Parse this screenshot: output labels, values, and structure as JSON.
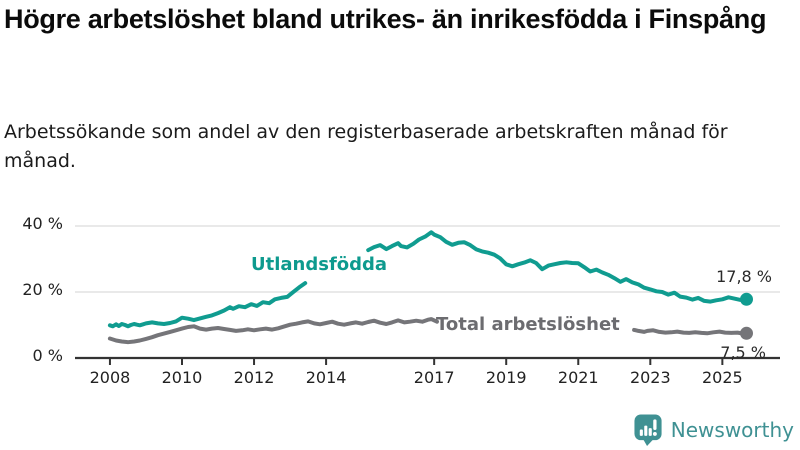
{
  "header": {
    "title": "Högre arbetslöshet bland utrikes- än inrikesfödda i Finspång",
    "subtitle": "Arbetssökande som andel av den registerbaserade arbetskraften månad för månad."
  },
  "chart_data": {
    "type": "line",
    "title": "Högre arbetslöshet bland utrikes- än inrikesfödda i Finspång",
    "xlabel": "",
    "ylabel": "",
    "xlim": [
      2007.03,
      2026.6
    ],
    "ylim": [
      0,
      40
    ],
    "grid": "horizontal-only",
    "grid_color": "#dcdcdc",
    "axis_color": "#333333",
    "legend_position": "inline-labels",
    "x_ticks": [
      {
        "year": 2008,
        "label": "2008"
      },
      {
        "year": 2010,
        "label": "2010"
      },
      {
        "year": 2012,
        "label": "2012"
      },
      {
        "year": 2014,
        "label": "2014"
      },
      {
        "year": 2017,
        "label": "2017"
      },
      {
        "year": 2019,
        "label": "2019"
      },
      {
        "year": 2021,
        "label": "2021"
      },
      {
        "year": 2023,
        "label": "2023"
      },
      {
        "year": 2025,
        "label": "2025"
      }
    ],
    "y_ticks": [
      {
        "value": 0,
        "label": "0 %"
      },
      {
        "value": 20,
        "label": "20 %"
      },
      {
        "value": 40,
        "label": "40 %"
      }
    ],
    "series": [
      {
        "name": "Utlandsfödda",
        "color": "#109c90",
        "label_color": "#0d9a8e",
        "end_label": "17,8 %",
        "end_value": 17.8,
        "segments": [
          [
            [
              2008.0,
              9.9
            ],
            [
              2008.08,
              9.6
            ],
            [
              2008.17,
              10.2
            ],
            [
              2008.25,
              9.7
            ],
            [
              2008.33,
              10.3
            ],
            [
              2008.42,
              10.0
            ],
            [
              2008.5,
              9.6
            ],
            [
              2008.58,
              10.0
            ],
            [
              2008.67,
              10.3
            ],
            [
              2008.75,
              10.1
            ],
            [
              2008.83,
              9.9
            ],
            [
              2008.92,
              10.2
            ],
            [
              2009.0,
              10.5
            ],
            [
              2009.17,
              10.8
            ],
            [
              2009.33,
              10.5
            ],
            [
              2009.5,
              10.3
            ],
            [
              2009.67,
              10.6
            ],
            [
              2009.83,
              11.1
            ],
            [
              2010.0,
              12.2
            ],
            [
              2010.17,
              11.9
            ],
            [
              2010.33,
              11.5
            ],
            [
              2010.5,
              12.0
            ],
            [
              2010.67,
              12.5
            ],
            [
              2010.83,
              12.9
            ],
            [
              2011.0,
              13.6
            ],
            [
              2011.17,
              14.4
            ],
            [
              2011.33,
              15.4
            ],
            [
              2011.42,
              14.9
            ],
            [
              2011.58,
              15.7
            ],
            [
              2011.75,
              15.4
            ],
            [
              2011.92,
              16.3
            ],
            [
              2012.08,
              15.8
            ],
            [
              2012.25,
              16.9
            ],
            [
              2012.42,
              16.6
            ],
            [
              2012.58,
              17.8
            ],
            [
              2012.75,
              18.2
            ],
            [
              2012.92,
              18.5
            ],
            [
              2013.08,
              19.9
            ],
            [
              2013.25,
              21.4
            ],
            [
              2013.42,
              22.7
            ]
          ],
          [
            [
              2015.17,
              32.7
            ],
            [
              2015.33,
              33.6
            ],
            [
              2015.5,
              34.2
            ],
            [
              2015.67,
              33.0
            ],
            [
              2015.83,
              33.9
            ],
            [
              2016.0,
              34.8
            ],
            [
              2016.08,
              33.9
            ],
            [
              2016.25,
              33.5
            ],
            [
              2016.42,
              34.6
            ],
            [
              2016.58,
              35.9
            ],
            [
              2016.75,
              36.8
            ],
            [
              2016.92,
              38.1
            ],
            [
              2017.0,
              37.4
            ],
            [
              2017.17,
              36.6
            ],
            [
              2017.33,
              35.2
            ],
            [
              2017.5,
              34.3
            ],
            [
              2017.67,
              34.9
            ],
            [
              2017.83,
              35.1
            ],
            [
              2018.0,
              34.2
            ],
            [
              2018.17,
              32.9
            ],
            [
              2018.33,
              32.3
            ],
            [
              2018.5,
              31.9
            ],
            [
              2018.67,
              31.3
            ],
            [
              2018.83,
              30.2
            ],
            [
              2019.0,
              28.4
            ],
            [
              2019.17,
              27.8
            ],
            [
              2019.33,
              28.4
            ],
            [
              2019.5,
              28.9
            ],
            [
              2019.67,
              29.6
            ],
            [
              2019.83,
              28.8
            ],
            [
              2020.0,
              26.9
            ],
            [
              2020.17,
              28.0
            ],
            [
              2020.33,
              28.4
            ],
            [
              2020.5,
              28.8
            ],
            [
              2020.67,
              29.0
            ],
            [
              2020.83,
              28.8
            ],
            [
              2021.0,
              28.7
            ],
            [
              2021.17,
              27.5
            ],
            [
              2021.33,
              26.2
            ],
            [
              2021.5,
              26.8
            ],
            [
              2021.67,
              25.9
            ],
            [
              2021.83,
              25.2
            ],
            [
              2022.0,
              24.2
            ],
            [
              2022.17,
              23.1
            ],
            [
              2022.33,
              23.9
            ],
            [
              2022.5,
              22.9
            ],
            [
              2022.67,
              22.3
            ],
            [
              2022.83,
              21.3
            ],
            [
              2023.0,
              20.8
            ],
            [
              2023.17,
              20.2
            ],
            [
              2023.33,
              20.0
            ],
            [
              2023.5,
              19.2
            ],
            [
              2023.67,
              19.8
            ],
            [
              2023.83,
              18.6
            ],
            [
              2024.0,
              18.3
            ],
            [
              2024.17,
              17.7
            ],
            [
              2024.33,
              18.2
            ],
            [
              2024.5,
              17.3
            ],
            [
              2024.67,
              17.1
            ],
            [
              2024.83,
              17.5
            ],
            [
              2025.0,
              17.8
            ],
            [
              2025.17,
              18.4
            ],
            [
              2025.33,
              18.0
            ],
            [
              2025.5,
              17.6
            ],
            [
              2025.67,
              17.8
            ]
          ]
        ]
      },
      {
        "name": "Total arbetslöshet",
        "color": "#757579",
        "label_color": "#6c6c70",
        "end_label": "7,5 %",
        "end_value": 7.5,
        "segments": [
          [
            [
              2008.0,
              5.9
            ],
            [
              2008.17,
              5.3
            ],
            [
              2008.33,
              5.0
            ],
            [
              2008.5,
              4.8
            ],
            [
              2008.67,
              5.0
            ],
            [
              2008.83,
              5.3
            ],
            [
              2009.0,
              5.8
            ],
            [
              2009.17,
              6.3
            ],
            [
              2009.33,
              6.9
            ],
            [
              2009.5,
              7.4
            ],
            [
              2009.67,
              7.9
            ],
            [
              2009.83,
              8.4
            ],
            [
              2010.0,
              8.9
            ],
            [
              2010.17,
              9.4
            ],
            [
              2010.33,
              9.6
            ],
            [
              2010.5,
              8.9
            ],
            [
              2010.67,
              8.6
            ],
            [
              2010.83,
              8.9
            ],
            [
              2011.0,
              9.1
            ],
            [
              2011.17,
              8.8
            ],
            [
              2011.33,
              8.5
            ],
            [
              2011.5,
              8.2
            ],
            [
              2011.67,
              8.4
            ],
            [
              2011.83,
              8.7
            ],
            [
              2012.0,
              8.4
            ],
            [
              2012.17,
              8.7
            ],
            [
              2012.33,
              8.9
            ],
            [
              2012.5,
              8.6
            ],
            [
              2012.67,
              9.0
            ],
            [
              2012.83,
              9.5
            ],
            [
              2013.0,
              10.1
            ],
            [
              2013.17,
              10.4
            ],
            [
              2013.33,
              10.8
            ],
            [
              2013.5,
              11.1
            ],
            [
              2013.67,
              10.5
            ],
            [
              2013.83,
              10.2
            ],
            [
              2014.0,
              10.6
            ],
            [
              2014.17,
              11.0
            ],
            [
              2014.33,
              10.4
            ],
            [
              2014.5,
              10.1
            ],
            [
              2014.67,
              10.5
            ],
            [
              2014.83,
              10.8
            ],
            [
              2015.0,
              10.4
            ],
            [
              2015.17,
              10.9
            ],
            [
              2015.33,
              11.3
            ],
            [
              2015.5,
              10.7
            ],
            [
              2015.67,
              10.3
            ],
            [
              2015.83,
              10.8
            ],
            [
              2016.0,
              11.4
            ],
            [
              2016.17,
              10.8
            ],
            [
              2016.33,
              11.0
            ],
            [
              2016.5,
              11.3
            ],
            [
              2016.67,
              11.0
            ],
            [
              2016.83,
              11.6
            ],
            [
              2016.92,
              11.8
            ],
            [
              2017.08,
              11.0
            ]
          ],
          [
            [
              2022.55,
              8.5
            ],
            [
              2022.67,
              8.2
            ],
            [
              2022.83,
              7.9
            ],
            [
              2022.92,
              8.2
            ],
            [
              2023.08,
              8.4
            ],
            [
              2023.25,
              7.9
            ],
            [
              2023.42,
              7.7
            ],
            [
              2023.58,
              7.8
            ],
            [
              2023.75,
              8.0
            ],
            [
              2023.92,
              7.7
            ],
            [
              2024.08,
              7.6
            ],
            [
              2024.25,
              7.8
            ],
            [
              2024.42,
              7.6
            ],
            [
              2024.58,
              7.5
            ],
            [
              2024.75,
              7.8
            ],
            [
              2024.92,
              8.0
            ],
            [
              2025.08,
              7.7
            ],
            [
              2025.25,
              7.6
            ],
            [
              2025.42,
              7.7
            ],
            [
              2025.58,
              7.4
            ],
            [
              2025.67,
              7.5
            ]
          ]
        ]
      }
    ]
  },
  "branding": {
    "name": "Newsworthy",
    "color": "#3f9193",
    "icon": "speech-bubble-bar-chart-icon"
  }
}
